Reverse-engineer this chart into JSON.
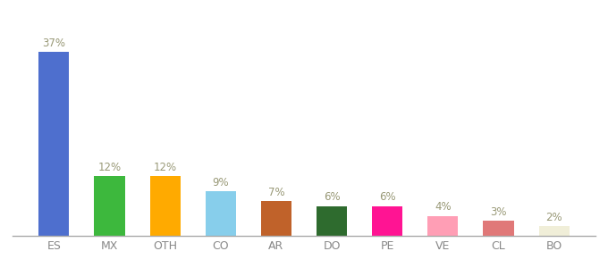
{
  "categories": [
    "ES",
    "MX",
    "OTH",
    "CO",
    "AR",
    "DO",
    "PE",
    "VE",
    "CL",
    "BO"
  ],
  "values": [
    37,
    12,
    12,
    9,
    7,
    6,
    6,
    4,
    3,
    2
  ],
  "bar_colors": [
    "#4e6fce",
    "#3db83d",
    "#ffaa00",
    "#87ceeb",
    "#c0622a",
    "#2e6b2e",
    "#ff1493",
    "#ff9eb5",
    "#e07878",
    "#f0eed8"
  ],
  "ylim": [
    0,
    42
  ],
  "label_color": "#999977",
  "label_fontsize": 8.5,
  "xlabel_fontsize": 9,
  "bar_width": 0.55,
  "background_color": "#ffffff",
  "bottom_line_color": "#aaaaaa",
  "tick_label_color": "#888888"
}
